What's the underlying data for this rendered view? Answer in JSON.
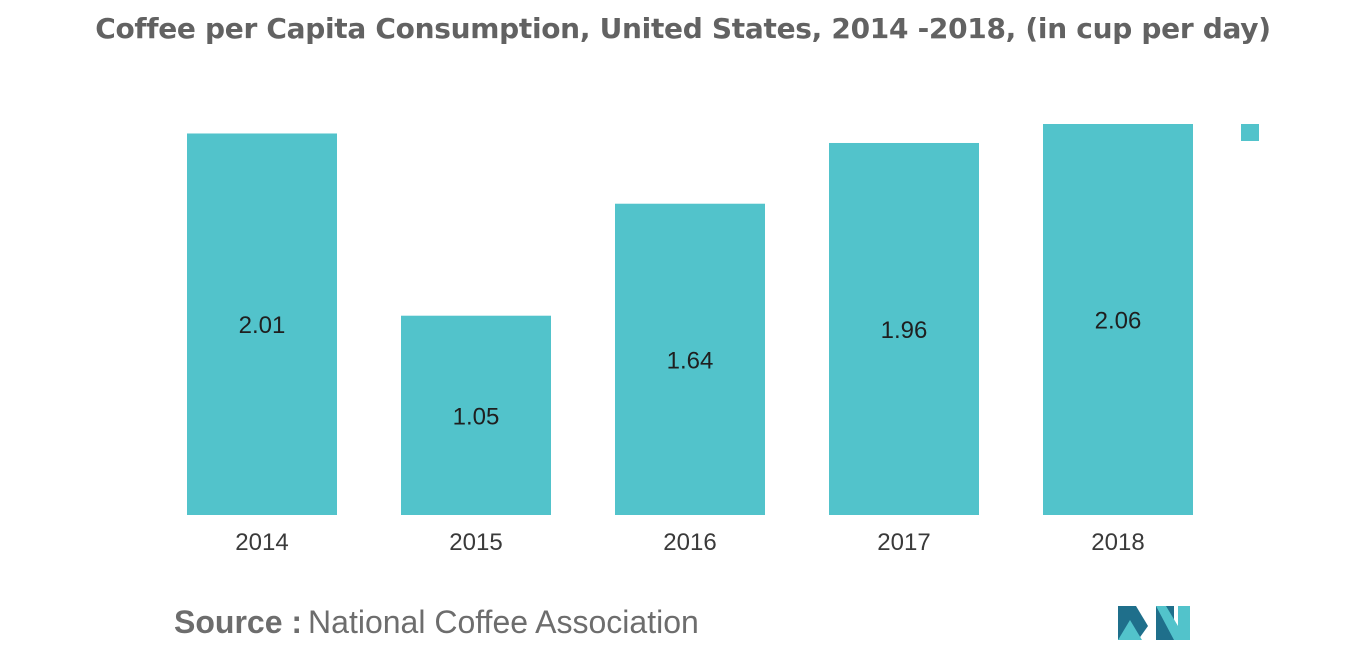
{
  "colors": {
    "bar": "#52c3cb",
    "title": "#626262",
    "source": "#6d6d6d",
    "logo_dark": "#1f6f8b",
    "logo_light": "#52c3cb"
  },
  "source": {
    "prefix": "Source :",
    "text": "National Coffee Association"
  },
  "legend": {
    "entries": [
      {
        "name": "",
        "color": "#52c3cb"
      }
    ]
  },
  "logo": {
    "icon": "mordor-intelligence-logo-icon"
  },
  "chart_data": {
    "type": "bar",
    "title": "Coffee per Capita Consumption, United States, 2014 -2018, (in cup per day)",
    "categories": [
      "2014",
      "2015",
      "2016",
      "2017",
      "2018"
    ],
    "values": [
      2.01,
      1.05,
      1.64,
      1.96,
      2.06
    ],
    "value_labels": [
      "2.01",
      "1.05",
      "1.64",
      "1.96",
      "2.06"
    ],
    "xlabel": "",
    "ylabel": "",
    "ylim": [
      0,
      2.06
    ],
    "grid": false,
    "legend_position": "top-right",
    "data_label_position": "center"
  }
}
